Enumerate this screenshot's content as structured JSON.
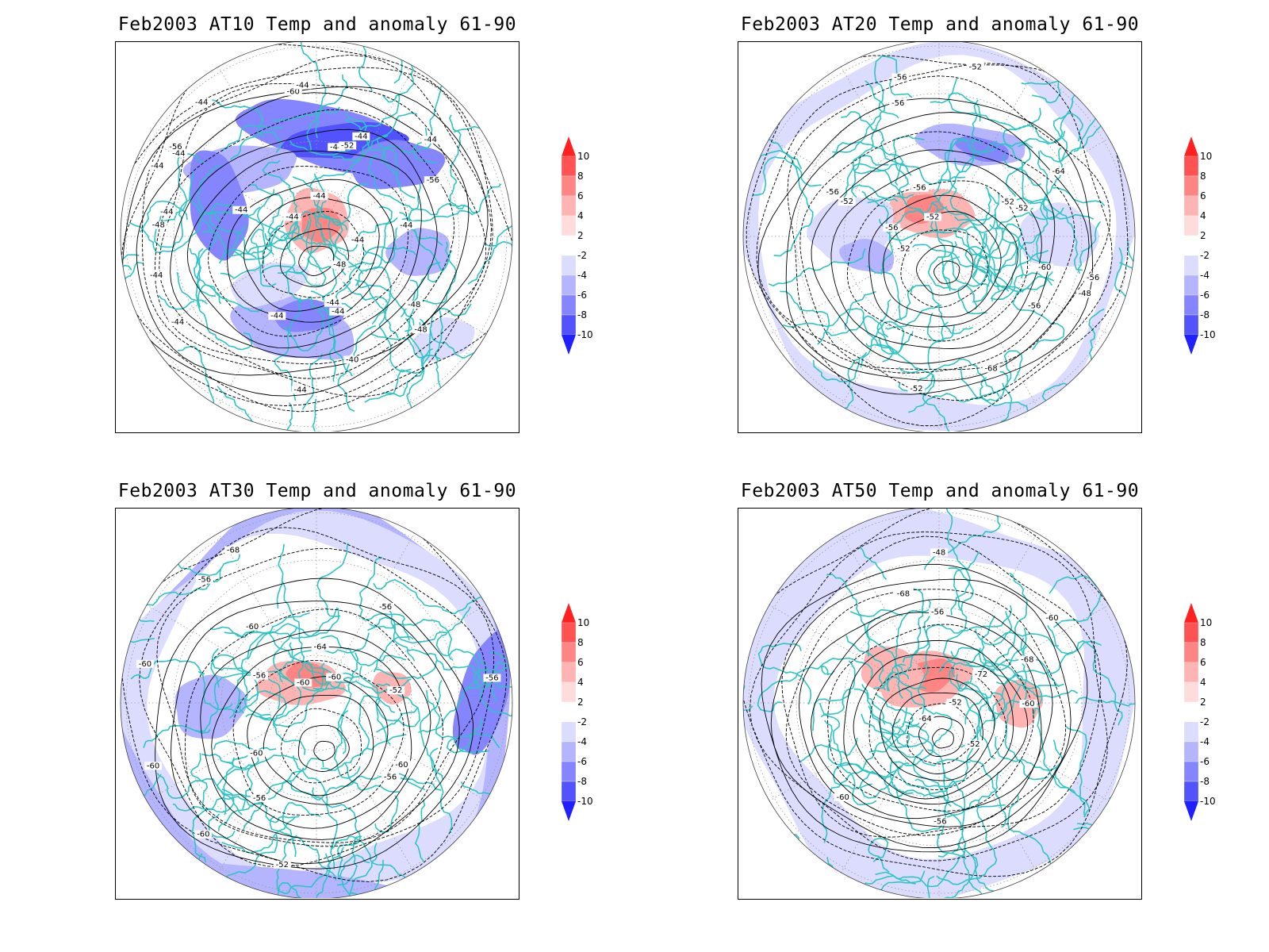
{
  "panels": [
    {
      "title": "Feb2003 AT10 Temp and anomaly 61-90",
      "contour_labels": [
        "-44",
        "-44",
        "-44",
        "-44",
        "-44",
        "-48",
        "-48",
        "-48",
        "-44",
        "-44",
        "-40",
        "-44",
        "-44",
        "-44",
        "-44",
        "-56",
        "-60",
        "-44",
        "-56",
        "-52",
        "-48",
        "-44",
        "-44",
        "-44",
        "-44",
        "-44",
        "-44",
        "-44"
      ],
      "pattern": "at10"
    },
    {
      "title": "Feb2003 AT20 Temp and anomaly 61-90",
      "contour_labels": [
        "-56",
        "-56",
        "-56",
        "-48",
        "-52",
        "-60",
        "-64",
        "-68",
        "-52",
        "-52",
        "-52",
        "-56",
        "-52",
        "-56",
        "-52",
        "-52",
        "-56",
        "-56"
      ],
      "pattern": "at20"
    },
    {
      "title": "Feb2003 AT30 Temp and anomaly 61-90",
      "contour_labels": [
        "-60",
        "-56",
        "-60",
        "-60",
        "-56",
        "-52",
        "-56",
        "-52",
        "-64",
        "-68",
        "-60",
        "-60",
        "-60",
        "-56",
        "-56",
        "-56",
        "-60",
        "-60"
      ],
      "pattern": "at30"
    },
    {
      "title": "Feb2003 AT50 Temp and anomaly 61-90",
      "contour_labels": [
        "-48",
        "-52",
        "-60",
        "-52",
        "-68",
        "-72",
        "-56",
        "-64",
        "-56",
        "-60",
        "-60",
        "-64",
        "-68"
      ],
      "pattern": "at50"
    }
  ],
  "colorbar": {
    "ticks": [
      "10",
      "8",
      "6",
      "4",
      "2",
      "-2",
      "-4",
      "-6",
      "-8",
      "-10"
    ],
    "colors": [
      "#ff2020",
      "#ff5252",
      "#ff8585",
      "#ffb4b4",
      "#ffdcdc",
      "#ffffff",
      "#dcdcff",
      "#b4b4ff",
      "#8585ff",
      "#5252ff",
      "#2020ff"
    ]
  },
  "map_style": {
    "coast_color": "#2ec4c4",
    "contour_color": "#000000",
    "grid_color": "#9a9a9a"
  }
}
